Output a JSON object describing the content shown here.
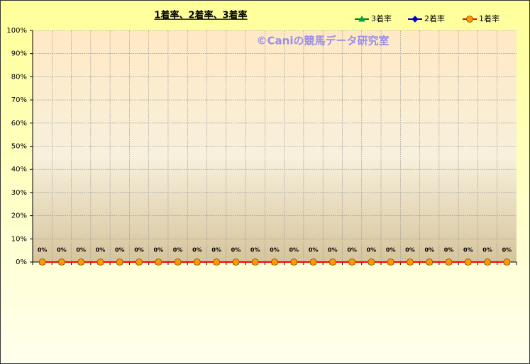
{
  "chart_data": {
    "type": "line",
    "title": "1着率、2着率、3着率",
    "annotation": "©Caniの競馬データ研究室",
    "categories": [
      null,
      null,
      null,
      null,
      null,
      null,
      null,
      null,
      null,
      null,
      null,
      null,
      null,
      null,
      null,
      null,
      null,
      null,
      null,
      null,
      null,
      null,
      null,
      null,
      null
    ],
    "series": [
      {
        "name": "3着率",
        "color": "#008000",
        "marker": "triangle",
        "marker_color": "#00a050",
        "values": [
          0,
          0,
          0,
          0,
          0,
          0,
          0,
          0,
          0,
          0,
          0,
          0,
          0,
          0,
          0,
          0,
          0,
          0,
          0,
          0,
          0,
          0,
          0,
          0,
          0
        ]
      },
      {
        "name": "2着率",
        "color": "#0000cc",
        "marker": "diamond",
        "marker_color": "#0000cc",
        "values": [
          0,
          0,
          0,
          0,
          0,
          0,
          0,
          0,
          0,
          0,
          0,
          0,
          0,
          0,
          0,
          0,
          0,
          0,
          0,
          0,
          0,
          0,
          0,
          0,
          0
        ]
      },
      {
        "name": "1着率",
        "color": "#ff0000",
        "marker": "circle",
        "marker_color": "#ff9900",
        "values": [
          0,
          0,
          0,
          0,
          0,
          0,
          0,
          0,
          0,
          0,
          0,
          0,
          0,
          0,
          0,
          0,
          0,
          0,
          0,
          0,
          0,
          0,
          0,
          0,
          0
        ],
        "value_labels": [
          "0%",
          "0%",
          "0%",
          "0%",
          "0%",
          "0%",
          "0%",
          "0%",
          "0%",
          "0%",
          "0%",
          "0%",
          "0%",
          "0%",
          "0%",
          "0%",
          "0%",
          "0%",
          "0%",
          "0%",
          "0%",
          "0%",
          "0%",
          "0%",
          "0%"
        ]
      }
    ],
    "ylim": [
      0,
      100
    ],
    "yticks": [
      {
        "value": 0,
        "label": "0%"
      },
      {
        "value": 10,
        "label": "10%"
      },
      {
        "value": 20,
        "label": "20%"
      },
      {
        "value": 30,
        "label": "30%"
      },
      {
        "value": 40,
        "label": "40%"
      },
      {
        "value": 50,
        "label": "50%"
      },
      {
        "value": 60,
        "label": "60%"
      },
      {
        "value": 70,
        "label": "70%"
      },
      {
        "value": 80,
        "label": "80%"
      },
      {
        "value": 90,
        "label": "90%"
      },
      {
        "value": 100,
        "label": "100%"
      }
    ],
    "grid": true,
    "legend": "top-right"
  }
}
